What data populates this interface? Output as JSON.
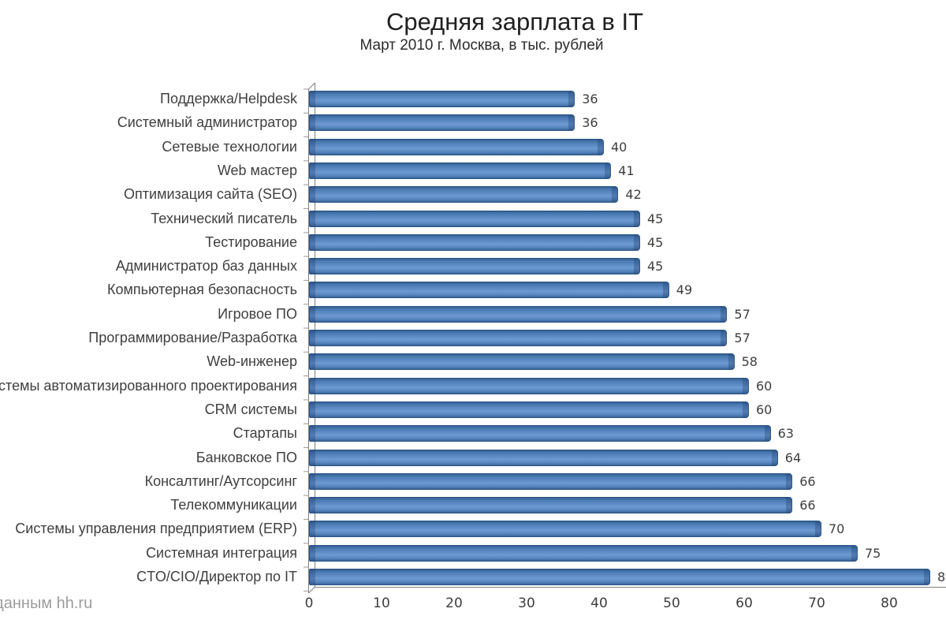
{
  "header": {
    "title": "Средняя зарплата в IT",
    "subtitle": "Март 2010 г. Москва, в тыс. рублей"
  },
  "source_note": "По данным hh.ru",
  "chart_data": {
    "type": "bar",
    "orientation": "horizontal",
    "title": "Средняя зарплата в IT",
    "subtitle": "Март 2010 г. Москва, в тыс. рублей",
    "categories": [
      "Поддержка/Helpdesk",
      "Системный администратор",
      "Сетевые технологии",
      "Web мастер",
      "Оптимизация сайта (SEO)",
      "Технический писатель",
      "Тестирование",
      "Администратор баз данных",
      "Компьютерная безопасность",
      "Игровое ПО",
      "Программирование/Разработка",
      "Web-инженер",
      "Системы автоматизированного проектирования",
      "CRM системы",
      "Стартапы",
      "Банковское ПО",
      "Консалтинг/Аутсорсинг",
      "Телекоммуникации",
      "Системы управления предприятием (ERP)",
      "Системная интеграция",
      "CTO/CIO/Директор по IT"
    ],
    "values": [
      36,
      36,
      40,
      41,
      42,
      45,
      45,
      45,
      49,
      57,
      57,
      58,
      60,
      60,
      63,
      64,
      66,
      66,
      70,
      75,
      85
    ],
    "value_labels_shown": true,
    "xticks": [
      0,
      10,
      20,
      30,
      40,
      50,
      60,
      70,
      80
    ],
    "xlim": [
      0,
      88
    ],
    "xlabel": "",
    "ylabel": "",
    "grid": false,
    "legend": false,
    "bar_color": "#4f81bd",
    "bar_border_color": "#2b5589",
    "axis_color": "#7f7f7f",
    "text_color": "#3f3f3f"
  }
}
